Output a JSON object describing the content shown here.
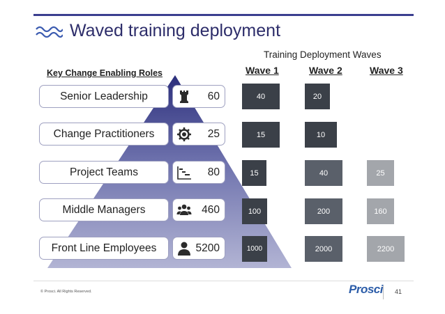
{
  "header": {
    "title": "Waved training deployment"
  },
  "waves": {
    "heading": "Training Deployment Waves",
    "columns": [
      "Wave 1",
      "Wave 2",
      "Wave 3"
    ]
  },
  "roles_heading": "Key Change Enabling Roles",
  "roles": [
    {
      "label": "Senior Leadership",
      "count": "60",
      "icon": "chess-rook-icon",
      "waves": [
        "40",
        "20",
        ""
      ]
    },
    {
      "label": "Change Practitioners",
      "count": "25",
      "icon": "gear-icon",
      "waves": [
        "15",
        "10",
        ""
      ]
    },
    {
      "label": "Project Teams",
      "count": "80",
      "icon": "gantt-chart-icon",
      "waves": [
        "15",
        "40",
        "25"
      ]
    },
    {
      "label": "Middle Managers",
      "count": "460",
      "icon": "group-icon",
      "waves": [
        "100",
        "200",
        "160"
      ]
    },
    {
      "label": "Front Line Employees",
      "count": "5200",
      "icon": "user-icon",
      "waves": [
        "1000",
        "2000",
        "2200"
      ]
    }
  ],
  "colors": {
    "accent": "#3b3f8f",
    "dark_box": "#3b4048",
    "mid_box": "#5a606a",
    "light_box": "#a3a6ab",
    "pyramid": "#7b7fb3"
  },
  "footer": {
    "copyright": "© Prosci. All Rights Reserved.",
    "logo": "Prosci",
    "page_number": "41"
  }
}
